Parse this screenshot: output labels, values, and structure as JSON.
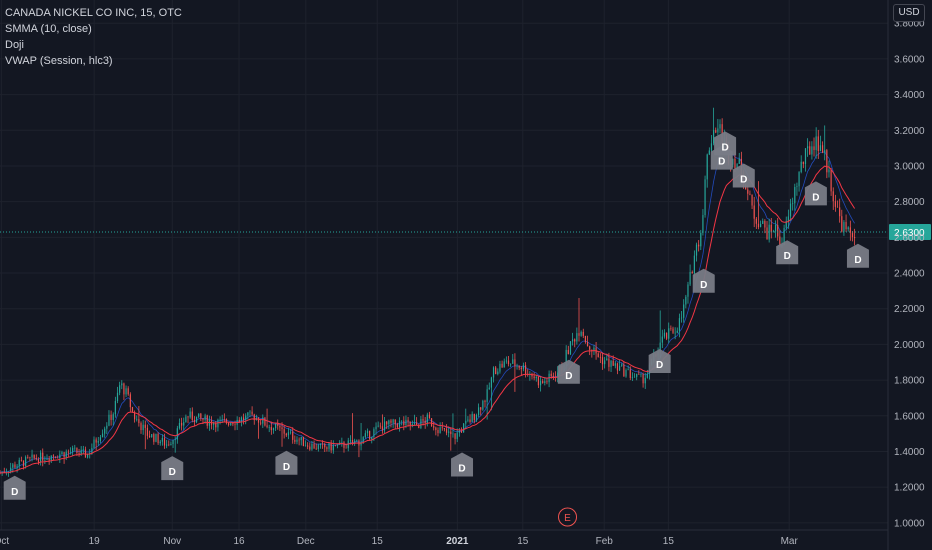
{
  "legend": {
    "title": "CANADA NICKEL CO INC, 15, OTC",
    "indicators": [
      "SMMA (10, close)",
      "Doji",
      "VWAP (Session, hlc3)"
    ]
  },
  "currency": "USD",
  "last_price": "2.6300",
  "earnings_marker": "E",
  "doji_marker": "D",
  "colors": {
    "background": "#131722",
    "grid": "#1e222d",
    "up": "#26a69a",
    "down": "#ef5350",
    "smma": "#f23645",
    "vwap": "#2962ff",
    "price_line": "#26a69a",
    "marker": "#787b86"
  },
  "chart_data": {
    "type": "candlestick",
    "instrument": "CANADA NICKEL CO INC",
    "timeframe": "15",
    "exchange": "OTC",
    "ylim": [
      0.96,
      3.93
    ],
    "y_ticks": [
      1.0,
      1.2,
      1.4,
      1.6,
      1.8,
      2.0,
      2.2,
      2.4,
      2.6,
      2.8,
      3.0,
      3.2,
      3.4,
      3.6,
      3.8
    ],
    "y_tick_labels": [
      "1.0000",
      "1.2000",
      "1.4000",
      "1.6000",
      "1.8000",
      "2.0000",
      "2.2000",
      "2.4000",
      "2.6000",
      "2.8000",
      "3.0000",
      "3.2000",
      "3.4000",
      "3.6000",
      "3.8000"
    ],
    "x_labels": [
      {
        "label": "Oct",
        "t": 0.2
      },
      {
        "label": "19",
        "t": 14.1
      },
      {
        "label": "Nov",
        "t": 25.8
      },
      {
        "label": "16",
        "t": 35.8
      },
      {
        "label": "Dec",
        "t": 45.8
      },
      {
        "label": "15",
        "t": 56.5
      },
      {
        "label": "2021",
        "t": 68.5,
        "bold": true
      },
      {
        "label": "15",
        "t": 78.3
      },
      {
        "label": "Feb",
        "t": 90.5
      },
      {
        "label": "15",
        "t": 100.1
      },
      {
        "label": "Mar",
        "t": 118.2
      }
    ],
    "x_range": [
      0,
      133
    ],
    "price_series": [
      [
        0,
        1.28
      ],
      [
        2,
        1.32
      ],
      [
        5,
        1.36
      ],
      [
        8,
        1.38
      ],
      [
        11,
        1.4
      ],
      [
        13,
        1.38
      ],
      [
        15,
        1.5
      ],
      [
        17,
        1.62
      ],
      [
        18,
        1.78
      ],
      [
        19,
        1.72
      ],
      [
        20,
        1.6
      ],
      [
        22,
        1.5
      ],
      [
        24,
        1.46
      ],
      [
        25,
        1.44
      ],
      [
        26,
        1.48
      ],
      [
        28,
        1.6
      ],
      [
        30,
        1.58
      ],
      [
        33,
        1.56
      ],
      [
        36,
        1.58
      ],
      [
        38,
        1.6
      ],
      [
        40,
        1.55
      ],
      [
        42,
        1.52
      ],
      [
        44,
        1.48
      ],
      [
        46,
        1.44
      ],
      [
        48,
        1.42
      ],
      [
        51,
        1.43
      ],
      [
        54,
        1.46
      ],
      [
        57,
        1.54
      ],
      [
        60,
        1.56
      ],
      [
        62,
        1.54
      ],
      [
        64,
        1.58
      ],
      [
        66,
        1.52
      ],
      [
        68,
        1.48
      ],
      [
        69,
        1.52
      ],
      [
        71,
        1.6
      ],
      [
        73,
        1.72
      ],
      [
        74,
        1.86
      ],
      [
        76,
        1.9
      ],
      [
        78,
        1.88
      ],
      [
        80,
        1.82
      ],
      [
        81,
        1.78
      ],
      [
        82,
        1.8
      ],
      [
        84,
        1.86
      ],
      [
        85,
        1.96
      ],
      [
        86,
        2.04
      ],
      [
        87,
        2.1
      ],
      [
        88,
        2.0
      ],
      [
        89,
        1.96
      ],
      [
        90,
        1.92
      ],
      [
        92,
        1.88
      ],
      [
        94,
        1.84
      ],
      [
        96,
        1.8
      ],
      [
        97,
        1.84
      ],
      [
        98,
        1.92
      ],
      [
        99,
        2.02
      ],
      [
        101,
        2.08
      ],
      [
        102,
        2.14
      ],
      [
        103,
        2.3
      ],
      [
        104,
        2.5
      ],
      [
        105,
        2.64
      ],
      [
        106,
        3.08
      ],
      [
        107,
        3.22
      ],
      [
        108,
        3.2
      ],
      [
        109,
        3.06
      ],
      [
        110,
        3.04
      ],
      [
        111,
        2.98
      ],
      [
        112,
        2.84
      ],
      [
        113,
        2.72
      ],
      [
        114,
        2.68
      ],
      [
        115,
        2.62
      ],
      [
        116,
        2.66
      ],
      [
        117,
        2.56
      ],
      [
        118,
        2.7
      ],
      [
        119,
        2.86
      ],
      [
        120,
        3.0
      ],
      [
        121,
        3.08
      ],
      [
        122,
        3.14
      ],
      [
        123,
        3.12
      ],
      [
        124,
        2.98
      ],
      [
        125,
        2.8
      ],
      [
        126,
        2.68
      ],
      [
        127,
        2.62
      ],
      [
        128,
        2.63
      ]
    ],
    "doji_markers": [
      {
        "t": 2.2,
        "price": 1.32
      },
      {
        "t": 25.8,
        "price": 1.43
      },
      {
        "t": 42.9,
        "price": 1.46
      },
      {
        "t": 69.2,
        "price": 1.45
      },
      {
        "t": 85.2,
        "price": 1.97
      },
      {
        "t": 98.8,
        "price": 2.03
      },
      {
        "t": 105.4,
        "price": 2.48
      },
      {
        "t": 108.1,
        "price": 3.17
      },
      {
        "t": 108.6,
        "price": 3.25
      },
      {
        "t": 111.4,
        "price": 3.07
      },
      {
        "t": 117.9,
        "price": 2.64
      },
      {
        "t": 122.2,
        "price": 2.97
      },
      {
        "t": 128.5,
        "price": 2.62
      }
    ],
    "earnings_t": 85.0,
    "last_price": 2.63
  }
}
